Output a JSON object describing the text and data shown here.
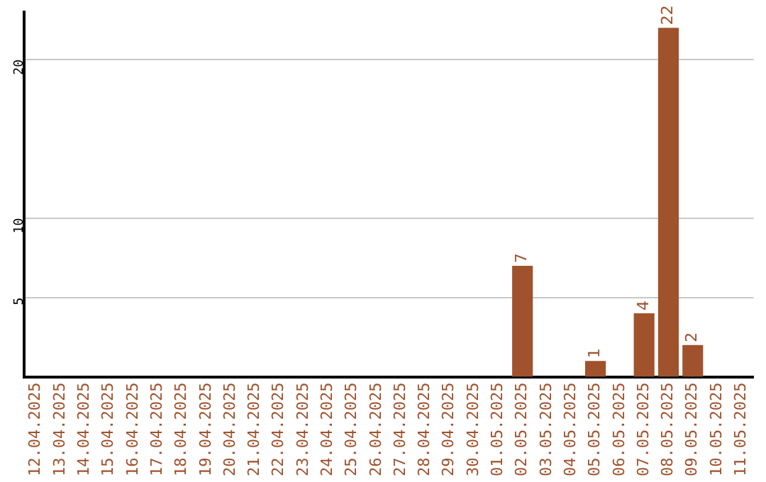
{
  "chart_data": {
    "type": "bar",
    "categories": [
      "12.04.2025",
      "13.04.2025",
      "14.04.2025",
      "15.04.2025",
      "16.04.2025",
      "17.04.2025",
      "18.04.2025",
      "19.04.2025",
      "20.04.2025",
      "21.04.2025",
      "22.04.2025",
      "23.04.2025",
      "24.04.2025",
      "25.04.2025",
      "26.04.2025",
      "27.04.2025",
      "28.04.2025",
      "29.04.2025",
      "30.04.2025",
      "01.05.2025",
      "02.05.2025",
      "03.05.2025",
      "04.05.2025",
      "05.05.2025",
      "06.05.2025",
      "07.05.2025",
      "08.05.2025",
      "09.05.2025",
      "10.05.2025",
      "11.05.2025"
    ],
    "values": [
      0,
      0,
      0,
      0,
      0,
      0,
      0,
      0,
      0,
      0,
      0,
      0,
      0,
      0,
      0,
      0,
      0,
      0,
      0,
      0,
      7,
      0,
      0,
      1,
      0,
      4,
      22,
      2,
      0,
      0
    ],
    "value_labels": [
      null,
      null,
      null,
      null,
      null,
      null,
      null,
      null,
      null,
      null,
      null,
      null,
      null,
      null,
      null,
      null,
      null,
      null,
      null,
      null,
      "7",
      null,
      null,
      "1",
      null,
      "4",
      "22",
      "2",
      null,
      null
    ],
    "color": "#a0522d",
    "ylim": [
      0,
      23
    ],
    "yticks": [
      5,
      10,
      20
    ],
    "grid": "y",
    "legend": false
  }
}
